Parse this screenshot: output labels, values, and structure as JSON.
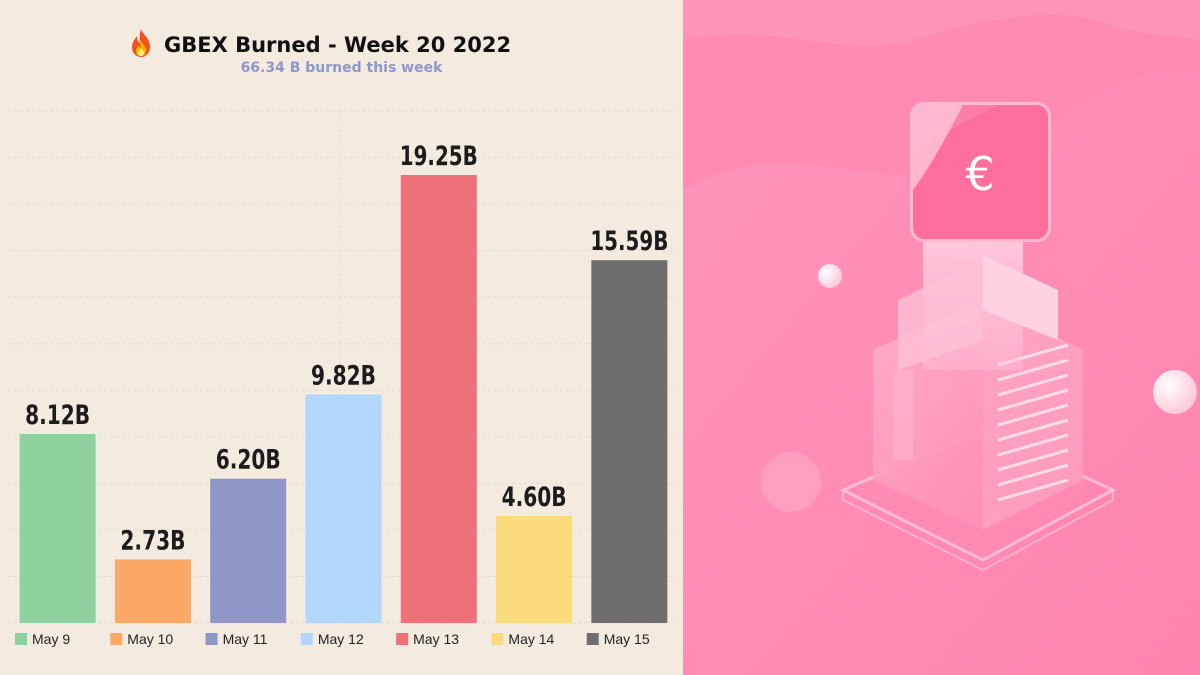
{
  "title": "GBEX Burned - Week 20 2022",
  "title_icon": "fire-icon",
  "subtitle": "66.34 B burned this week",
  "subtitle_color": "#8e97cb",
  "chart_data": {
    "type": "bar",
    "title": "GBEX Burned - Week 20 2022",
    "subtitle": "66.34 B burned this week",
    "categories": [
      "May 9",
      "May 10",
      "May 11",
      "May 12",
      "May 13",
      "May 14",
      "May 15"
    ],
    "values": [
      8.12,
      2.73,
      6.2,
      9.82,
      19.25,
      4.6,
      15.59
    ],
    "value_labels": [
      "8.12B",
      "2.73B",
      "6.20B",
      "9.82B",
      "19.25B",
      "4.60B",
      "15.59B"
    ],
    "colors": [
      "#8fd19e",
      "#fca866",
      "#8f97c9",
      "#b2d7fb",
      "#ee7179",
      "#fcdb7c",
      "#6e6e6e"
    ],
    "ylim": [
      0,
      22
    ],
    "grid": true,
    "legend": "bottom",
    "xlabel": "",
    "ylabel": ""
  },
  "photo": {
    "background": "#ff8bb3",
    "icon": "euro-icon",
    "icon_label": "€"
  }
}
